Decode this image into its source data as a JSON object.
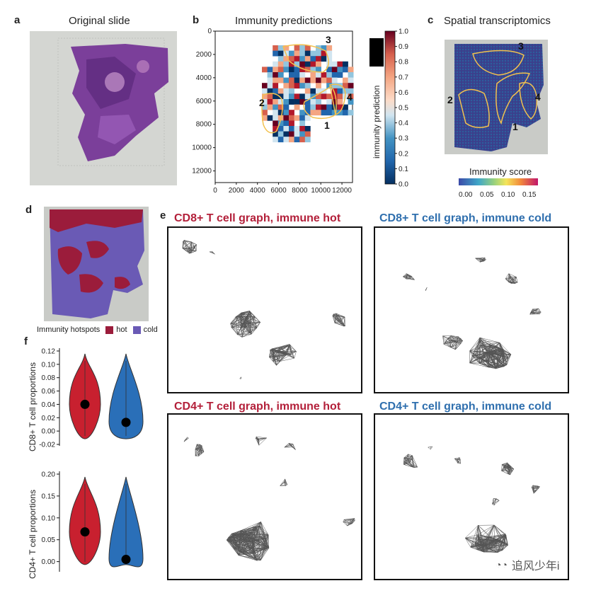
{
  "panels": {
    "a": {
      "letter": "a",
      "title": "Original slide"
    },
    "b": {
      "letter": "b",
      "title": "Immunity predictions"
    },
    "c": {
      "letter": "c",
      "title": "Spatial transcriptomics"
    },
    "d": {
      "letter": "d"
    },
    "e": {
      "letter": "e"
    },
    "f": {
      "letter": "f"
    }
  },
  "heatmap": {
    "x_ticks": [
      "0",
      "2000",
      "4000",
      "6000",
      "8000",
      "10000",
      "12000"
    ],
    "y_ticks": [
      "0",
      "2000",
      "4000",
      "6000",
      "8000",
      "10000",
      "12000"
    ],
    "regions": [
      "1",
      "2",
      "3",
      "4"
    ],
    "colorbar_label": "immunity prediction",
    "colorbar_ticks": [
      "0.0",
      "0.1",
      "0.2",
      "0.3",
      "0.4",
      "0.5",
      "0.6",
      "0.7",
      "0.8",
      "0.9",
      "1.0"
    ]
  },
  "spatial": {
    "regions": [
      "1",
      "2",
      "3",
      "4"
    ],
    "score_label": "Immunity score",
    "score_ticks": [
      "0.00",
      "0.05",
      "0.10",
      "0.15"
    ]
  },
  "hotspots": {
    "label": "Immunity hotspots",
    "hot": "hot",
    "cold": "cold",
    "hot_color": "#9b1c3b",
    "cold_color": "#6a5ab5"
  },
  "graphs": [
    {
      "title": "CD8+ T cell graph, immune hot",
      "color": "#b3203a"
    },
    {
      "title": "CD8+ T cell graph, immune cold",
      "color": "#2f6fae"
    },
    {
      "title": "CD4+ T cell graph, immune hot",
      "color": "#b3203a"
    },
    {
      "title": "CD4+ T cell graph, immune cold",
      "color": "#2f6fae"
    }
  ],
  "chart_data": [
    {
      "type": "violin",
      "ylabel": "CD8+ T cell proportions",
      "ylim": [
        -0.02,
        0.12
      ],
      "y_ticks": [
        "0.12",
        "0.10",
        "0.08",
        "0.06",
        "0.04",
        "0.02",
        "0.00",
        "-0.02"
      ],
      "series": [
        {
          "median": 0.04,
          "color": "#c8202f"
        },
        {
          "median": 0.013,
          "color": "#2a6fb8"
        }
      ]
    },
    {
      "type": "violin",
      "ylabel": "CD4+ T cell proportions",
      "ylim": [
        -0.02,
        0.2
      ],
      "y_ticks": [
        "0.20",
        "0.15",
        "0.10",
        "0.05",
        "0.00"
      ],
      "series": [
        {
          "median": 0.068,
          "color": "#c8202f"
        },
        {
          "median": 0.005,
          "color": "#2a6fb8"
        }
      ]
    }
  ],
  "watermark": {
    "text": "追风少年i"
  }
}
